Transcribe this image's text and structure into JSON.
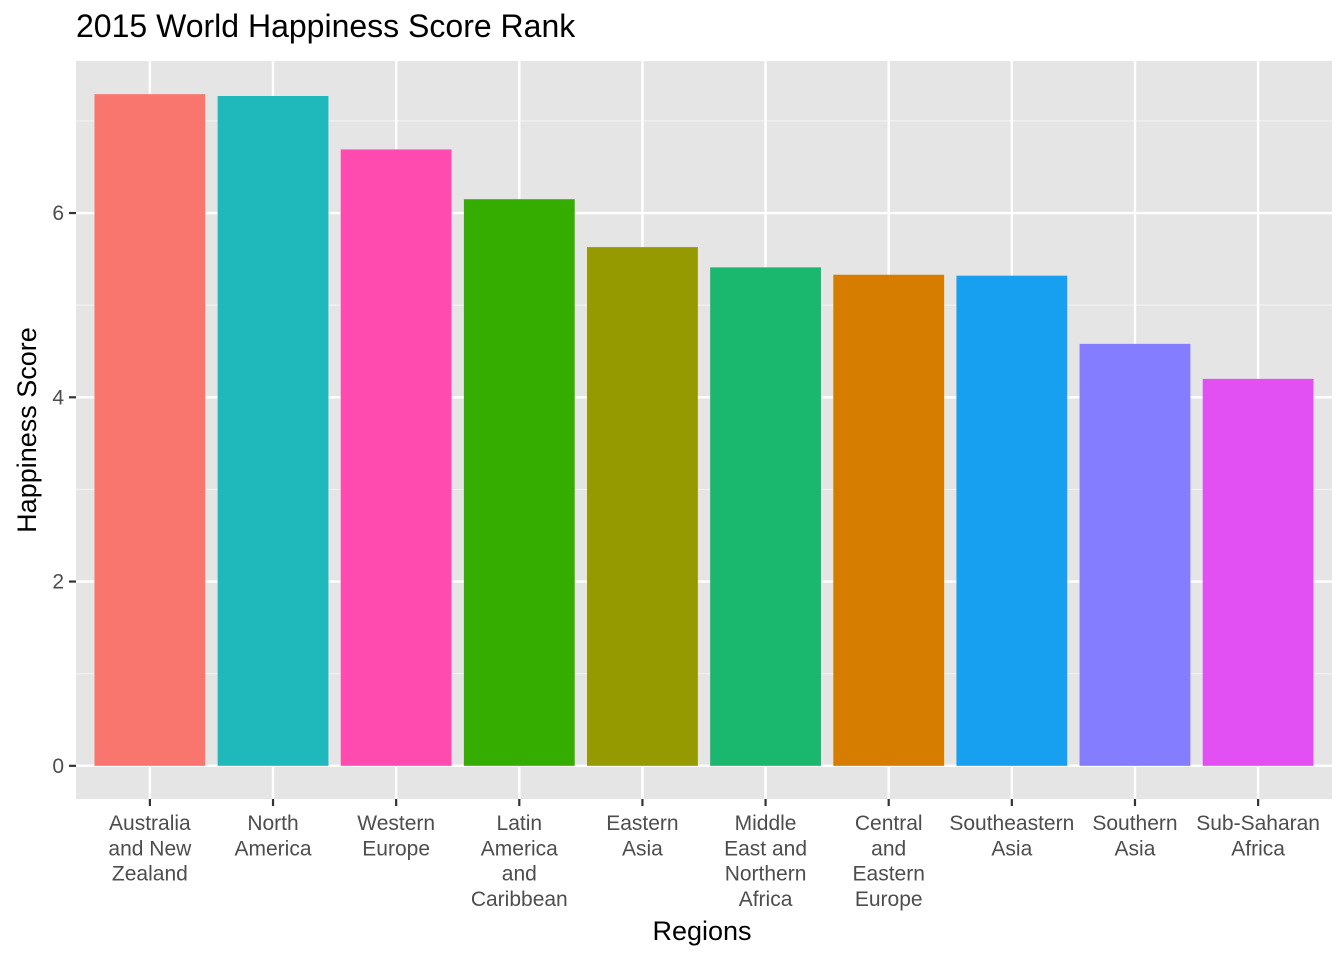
{
  "chart_data": {
    "type": "bar",
    "title": "2015 World Happiness Score Rank",
    "xlabel": "Regions",
    "ylabel": "Happiness Score",
    "categories": [
      "Australia and New Zealand",
      "North America",
      "Western Europe",
      "Latin America and Caribbean",
      "Eastern Asia",
      "Middle East and Northern Africa",
      "Central and Eastern Europe",
      "Southeastern Asia",
      "Southern Asia",
      "Sub-Saharan Africa"
    ],
    "category_label_lines": [
      [
        "Australia",
        "and New",
        "Zealand"
      ],
      [
        "North",
        "America"
      ],
      [
        "Western",
        "Europe"
      ],
      [
        "Latin",
        "America",
        "and",
        "Caribbean"
      ],
      [
        "Eastern",
        "Asia"
      ],
      [
        "Middle",
        "East and",
        "Northern",
        "Africa"
      ],
      [
        "Central",
        "and",
        "Eastern",
        "Europe"
      ],
      [
        "Southeastern",
        "Asia"
      ],
      [
        "Southern",
        "Asia"
      ],
      [
        "Sub-Saharan",
        "Africa"
      ]
    ],
    "values": [
      7.29,
      7.27,
      6.69,
      6.15,
      5.63,
      5.41,
      5.33,
      5.32,
      4.58,
      4.2
    ],
    "colors": [
      "#F8766D",
      "#1FB8BB",
      "#FF4AAF",
      "#35AC00",
      "#949A00",
      "#1AB76E",
      "#D67D00",
      "#17A0F0",
      "#847DFF",
      "#E24FF2"
    ],
    "yticks": [
      0,
      2,
      4,
      6
    ],
    "ylim": [
      -0.36,
      7.65
    ],
    "grid": true,
    "legend": "none"
  }
}
